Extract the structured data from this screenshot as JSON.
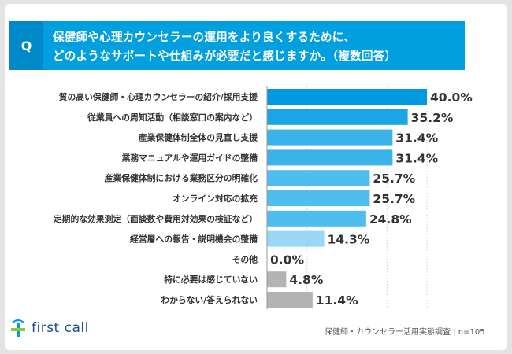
{
  "question": {
    "badge": "Q",
    "line1": "保健師や心理カウンセラーの運用をより良くするために、",
    "line2": "どのようなサポートや仕組みが必要だと感じますか。（複数回答）"
  },
  "chart_data": {
    "type": "bar",
    "orientation": "horizontal",
    "categories": [
      "質の高い保健師・心理カウンセラーの紹介/採用支援",
      "従業員への周知活動（相談窓口の案内など）",
      "産業保健体制全体の見直し支援",
      "業務マニュアルや運用ガイドの整備",
      "産業保健体制における業務区分の明確化",
      "オンライン対応の拡充",
      "定期的な効果測定（面談数や費用対効果の検証など）",
      "経営層への報告・説明機会の整備",
      "その他",
      "特に必要は感じていない",
      "わからない/答えられない"
    ],
    "values": [
      40.0,
      35.2,
      31.4,
      31.4,
      25.7,
      25.7,
      24.8,
      14.3,
      0.0,
      4.8,
      11.4
    ],
    "value_labels": [
      "40.0%",
      "35.2%",
      "31.4%",
      "31.4%",
      "25.7%",
      "25.7%",
      "24.8%",
      "14.3%",
      "0.0%",
      "4.8%",
      "11.4%"
    ],
    "bar_colors": [
      "#0099dd",
      "#1aa5e4",
      "#3cb2ea",
      "#3cb2ea",
      "#4fbdee",
      "#4fbdee",
      "#4fbdee",
      "#99d8f5",
      "#b3b3b3",
      "#b3b3b3",
      "#b3b3b3"
    ],
    "xlim": [
      0,
      40
    ],
    "grid": true
  },
  "footer": {
    "survey": "保健師・カウンセラー活用実態調査",
    "separator": "|",
    "sample": "n=105"
  },
  "brand": {
    "name": "first call",
    "color": "#1a4f8c",
    "accent": "#009fe0"
  }
}
